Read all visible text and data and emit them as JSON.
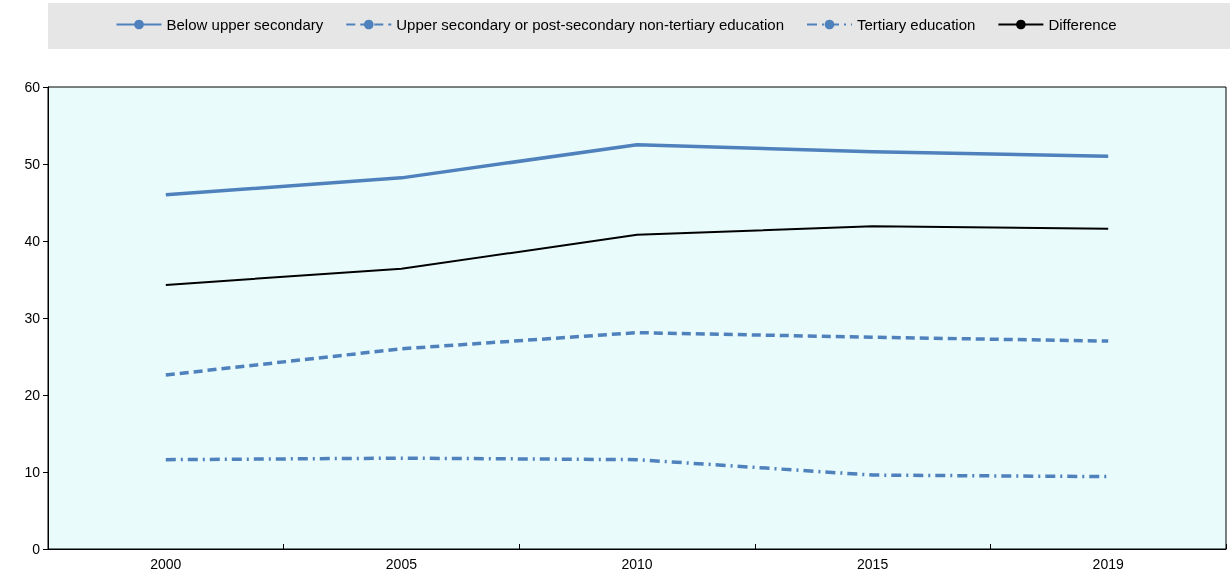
{
  "chart_data": {
    "type": "line",
    "categories": [
      "2000",
      "2005",
      "2010",
      "2015",
      "2019"
    ],
    "series": [
      {
        "name": "Below upper secondary",
        "color": "#4f81bd",
        "line_style": "solid",
        "values": [
          46.0,
          48.2,
          52.5,
          51.6,
          51.0
        ]
      },
      {
        "name": "Upper secondary or post-secondary non-tertiary education",
        "color": "#4f81bd",
        "line_style": "dashed",
        "values": [
          22.6,
          26.0,
          28.1,
          27.5,
          27.0
        ]
      },
      {
        "name": "Tertiary education",
        "color": "#4f81bd",
        "line_style": "dashdot",
        "values": [
          11.6,
          11.8,
          11.6,
          9.6,
          9.4
        ]
      },
      {
        "name": "Difference",
        "color": "#000000",
        "line_style": "solid",
        "values": [
          34.3,
          36.4,
          40.8,
          41.9,
          41.6
        ]
      }
    ],
    "ylim": [
      0,
      60
    ],
    "yticks": [
      0,
      10,
      20,
      30,
      40,
      50,
      60
    ],
    "grid": false,
    "legend": "top",
    "marker": "none"
  }
}
